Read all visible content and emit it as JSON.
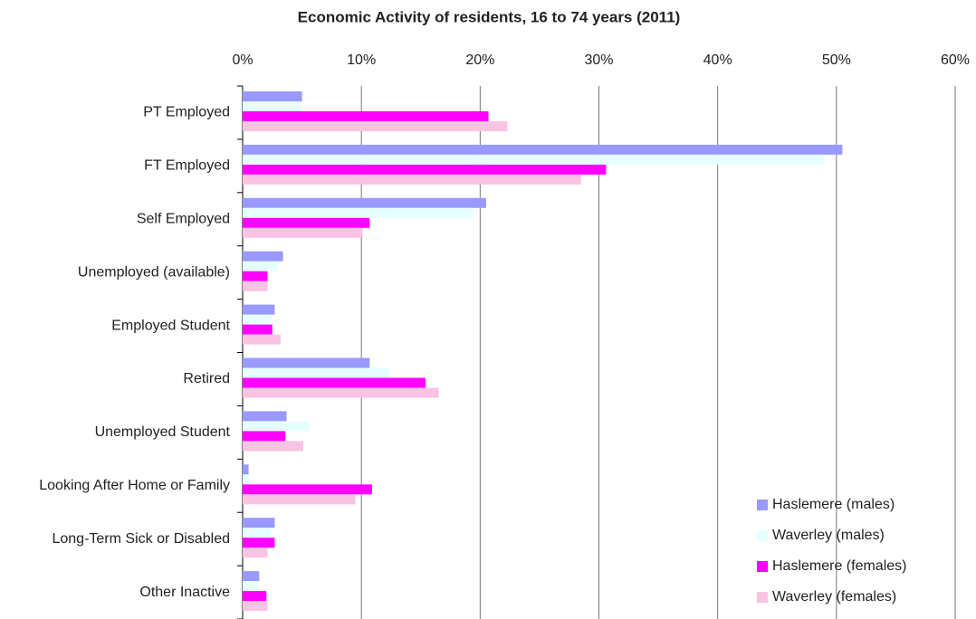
{
  "chart_data": {
    "type": "hbar",
    "title": "Economic Activity of residents, 16 to 74 years (2011)",
    "categories": [
      "PT Employed",
      "FT Employed",
      "Self Employed",
      "Unemployed (available)",
      "Employed Student",
      "Retired",
      "Unemployed Student",
      "Looking After Home or Family",
      "Long-Term Sick or Disabled",
      "Other Inactive"
    ],
    "series": [
      {
        "name": "Haslemere (males)",
        "color": "#9999ff",
        "values": [
          5.0,
          50.5,
          20.5,
          3.4,
          2.7,
          10.7,
          3.7,
          0.5,
          2.7,
          1.4
        ]
      },
      {
        "name": "Waverley (males)",
        "color": "#e6ffff",
        "values": [
          5.0,
          49.0,
          19.4,
          3.0,
          2.4,
          12.3,
          5.6,
          0.6,
          2.4,
          1.3
        ]
      },
      {
        "name": "Haslemere (females)",
        "color": "#ff00ff",
        "values": [
          20.7,
          30.6,
          10.7,
          2.1,
          2.5,
          15.4,
          3.6,
          10.9,
          2.7,
          2.0
        ]
      },
      {
        "name": "Waverley (females)",
        "color": "#f9c3e3",
        "values": [
          22.3,
          28.5,
          10.1,
          2.1,
          3.2,
          16.5,
          5.1,
          9.5,
          2.1,
          2.1
        ]
      }
    ],
    "xlim": [
      0,
      60
    ],
    "xticks": [
      {
        "value": 0,
        "label": "0%"
      },
      {
        "value": 10,
        "label": "10%"
      },
      {
        "value": 20,
        "label": "20%"
      },
      {
        "value": 30,
        "label": "30%"
      },
      {
        "value": 40,
        "label": "40%"
      },
      {
        "value": 50,
        "label": "50%"
      },
      {
        "value": 60,
        "label": "60%"
      }
    ],
    "grid": true,
    "legend": "lower right"
  }
}
